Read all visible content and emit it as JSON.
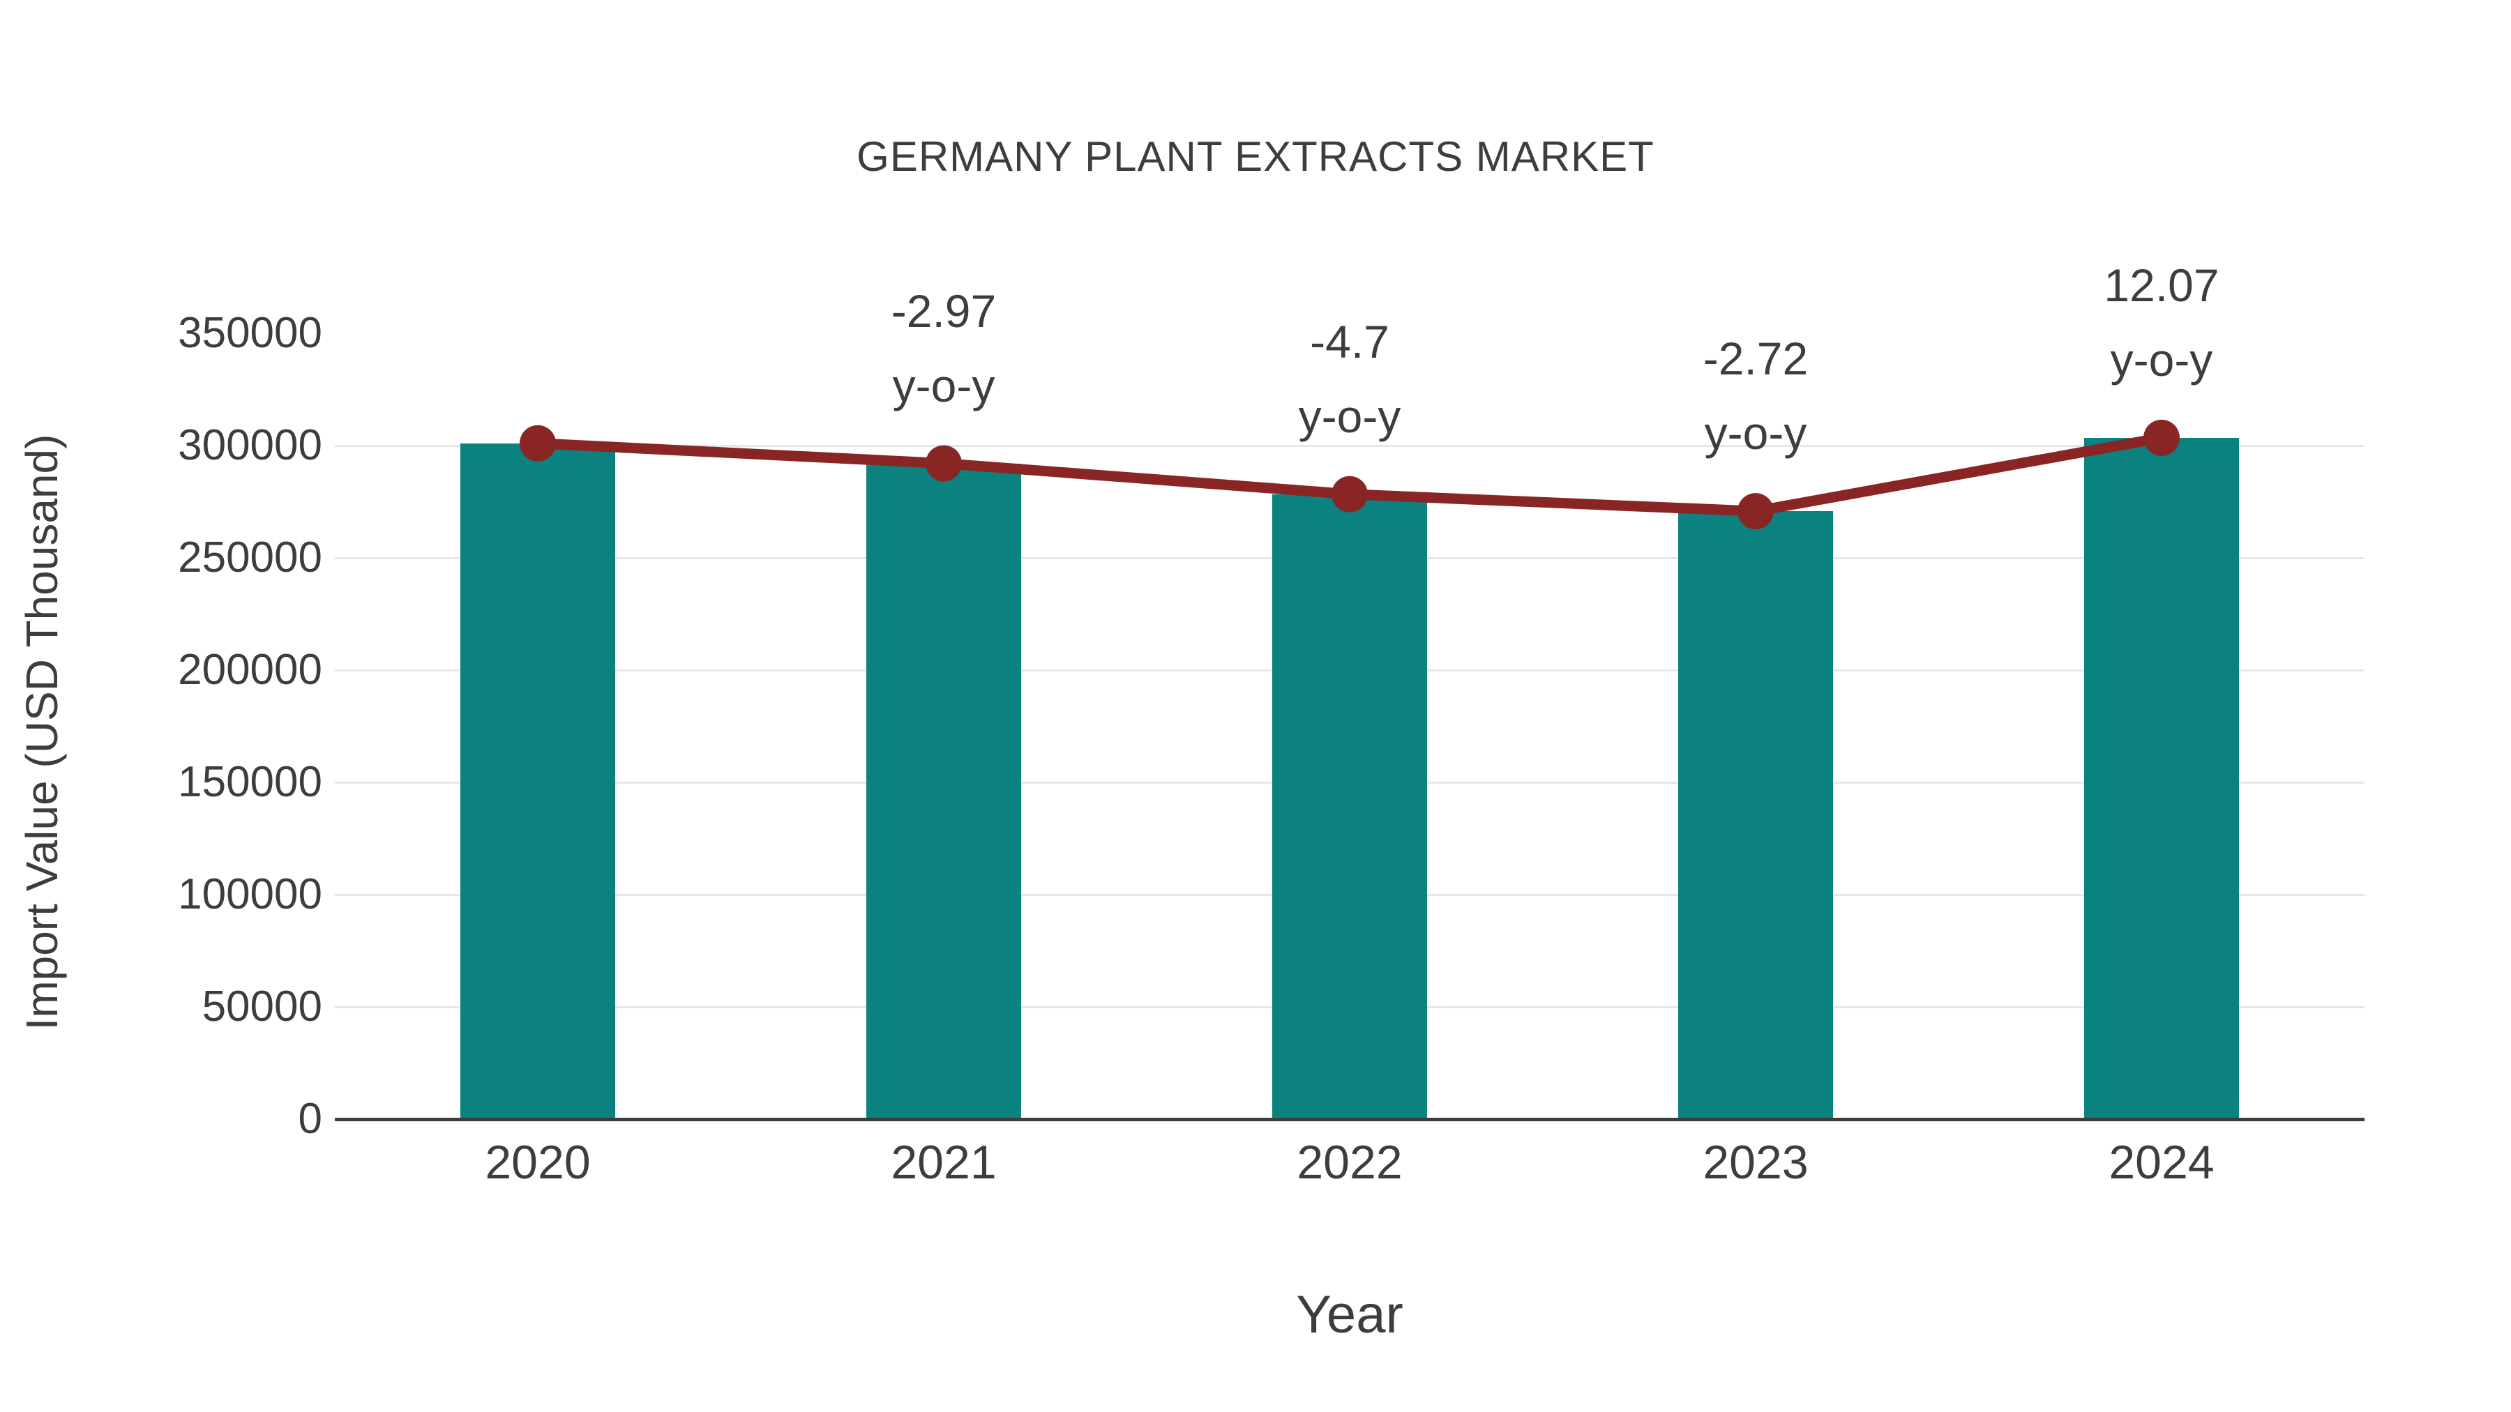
{
  "title": "GERMANY PLANT EXTRACTS MARKET",
  "x_axis_label": "Year",
  "y_axis_label": "Import Value (USD Thousand)",
  "colors": {
    "bar": "#0b8280",
    "line": "#8a2525",
    "marker": "#8a2525",
    "text": "#3d3d3d",
    "grid": "#e7e7e7",
    "axis": "#3d3d3d",
    "background": "#ffffff"
  },
  "chart_data": {
    "type": "bar",
    "title": "GERMANY PLANT EXTRACTS MARKET",
    "xlabel": "Year",
    "ylabel": "Import Value (USD Thousand)",
    "categories": [
      "2020",
      "2021",
      "2022",
      "2023",
      "2024"
    ],
    "series": [
      {
        "name": "Import Value (USD Thousand)",
        "type": "bar",
        "color": "#0b8280",
        "values": [
          301000,
          292060,
          278330,
          270760,
          303440
        ]
      },
      {
        "name": "Year-over-year trend",
        "type": "line",
        "color": "#8a2525",
        "values": [
          301000,
          292060,
          278330,
          270760,
          303440
        ]
      }
    ],
    "annotations": [
      {
        "category": "2021",
        "line1": "-2.97",
        "line2": "y-o-y",
        "yoy_percent": -2.97
      },
      {
        "category": "2022",
        "line1": "-4.7",
        "line2": "y-o-y",
        "yoy_percent": -4.7
      },
      {
        "category": "2023",
        "line1": "-2.72",
        "line2": "y-o-y",
        "yoy_percent": -2.72
      },
      {
        "category": "2024",
        "line1": "12.07",
        "line2": "y-o-y",
        "yoy_percent": 12.07
      }
    ],
    "ylim": [
      0,
      350000
    ],
    "yticks": [
      0,
      50000,
      100000,
      150000,
      200000,
      250000,
      300000,
      350000
    ],
    "gridline_values": [
      50000,
      100000,
      150000,
      200000,
      250000,
      300000
    ],
    "grid": "horizontal",
    "legend": "none"
  }
}
